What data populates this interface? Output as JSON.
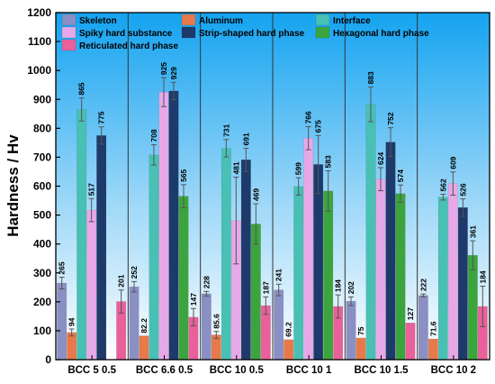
{
  "chart_data": {
    "type": "bar",
    "title": "",
    "xlabel": "",
    "ylabel": "Hardness / Hv",
    "ylim": [
      0,
      1200
    ],
    "yticks": [
      0,
      100,
      200,
      300,
      400,
      500,
      600,
      700,
      800,
      900,
      1000,
      1100,
      1200
    ],
    "grid": false,
    "legend_position": "top",
    "background": "gradient-blue",
    "categories": [
      "BCC 5 0.5",
      "BCC 6.6 0.5",
      "BCC 10 0.5",
      "BCC 10 1",
      "BCC 10 1.5",
      "BCC 10 2"
    ],
    "series": [
      {
        "name": "Skeleton",
        "color": "#8a8fc4",
        "values": [
          265,
          252,
          228,
          241,
          202,
          222
        ],
        "labels": [
          "265",
          "252",
          "228",
          "241",
          "202",
          "222"
        ],
        "errors": [
          20,
          18,
          8,
          20,
          15,
          5
        ]
      },
      {
        "name": "Aluminum",
        "color": "#e8794a",
        "values": [
          94,
          82.2,
          85.6,
          69.2,
          75,
          71.6
        ],
        "labels": [
          "94",
          "82.2",
          "85.6",
          "69.2",
          "75",
          "71.6"
        ],
        "errors": [
          12,
          0,
          12,
          0,
          0,
          0
        ]
      },
      {
        "name": "Interface",
        "color": "#48c0b4",
        "values": [
          865,
          708,
          731,
          599,
          883,
          562
        ],
        "labels": [
          "865",
          "708",
          "731",
          "599",
          "883",
          "562"
        ],
        "errors": [
          40,
          35,
          30,
          30,
          60,
          10
        ]
      },
      {
        "name": "Spiky hard substance",
        "color": "#e7a8e8",
        "values": [
          517,
          925,
          481,
          766,
          624,
          609
        ],
        "labels": [
          "517",
          "925",
          "481",
          "766",
          "624",
          "609"
        ],
        "errors": [
          40,
          50,
          150,
          40,
          40,
          40
        ]
      },
      {
        "name": "Strip-shaped hard phase",
        "color": "#1d3a6a",
        "values": [
          775,
          929,
          691,
          675,
          752,
          526
        ],
        "labels": [
          "775",
          "929",
          "691",
          "675",
          "752",
          "526"
        ],
        "errors": [
          30,
          30,
          40,
          100,
          50,
          30
        ]
      },
      {
        "name": "Hexagonal hard phase",
        "color": "#3ca43c",
        "values": [
          null,
          565,
          469,
          583,
          574,
          361
        ],
        "labels": [
          "",
          "565",
          "469",
          "583",
          "574",
          "361"
        ],
        "errors": [
          0,
          40,
          70,
          70,
          30,
          50
        ]
      },
      {
        "name": "Reticulated hard phase",
        "color": "#e9609a",
        "values": [
          201,
          147,
          187,
          184,
          127,
          184
        ],
        "labels": [
          "201",
          "147",
          "187",
          "184",
          "127",
          "184"
        ],
        "errors": [
          40,
          30,
          30,
          40,
          0,
          70
        ]
      }
    ]
  }
}
